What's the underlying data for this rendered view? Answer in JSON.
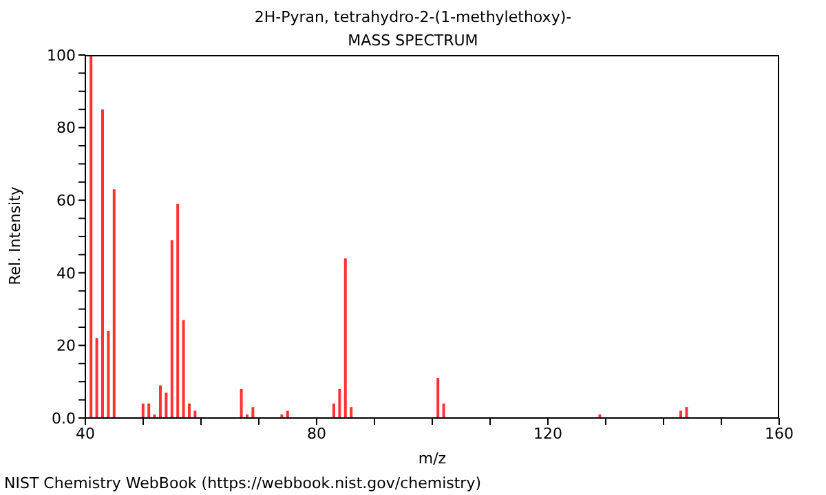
{
  "chart_data": {
    "type": "bar",
    "title": "2H-Pyran, tetrahydro-2-(1-methylethoxy)-",
    "subtitle": "MASS SPECTRUM",
    "xlabel": "m/z",
    "ylabel": "Rel. Intensity",
    "annotations": [
      "NIST Chemistry WebBook (https://webbook.nist.gov/chemistry)"
    ],
    "x": [
      41,
      42,
      43,
      44,
      45,
      50,
      51,
      52,
      53,
      54,
      55,
      56,
      57,
      58,
      59,
      67,
      68,
      69,
      74,
      75,
      83,
      84,
      85,
      86,
      101,
      102,
      129,
      143,
      144
    ],
    "values": [
      100,
      22,
      85,
      24,
      63,
      4,
      4,
      1,
      9,
      7,
      49,
      59,
      27,
      4,
      2,
      8,
      1,
      3,
      1,
      2,
      4,
      8,
      44,
      3,
      11,
      4,
      1,
      2,
      3
    ],
    "color": "#ff3333",
    "xlim": [
      40,
      160
    ],
    "xticks": [
      40,
      {
        "value": 50,
        "label": null
      },
      {
        "value": 60,
        "label": null
      },
      {
        "value": 70,
        "label": null
      },
      80,
      {
        "value": 90,
        "label": null
      },
      {
        "value": 100,
        "label": null
      },
      {
        "value": 110,
        "label": null
      },
      120,
      {
        "value": 130,
        "label": null
      },
      {
        "value": 140,
        "label": null
      },
      {
        "value": 150,
        "label": null
      },
      160
    ],
    "ylim": [
      0,
      100
    ],
    "yticks": [
      {
        "value": 0,
        "label": "0.0"
      },
      {
        "value": 5,
        "label": null
      },
      {
        "value": 10,
        "label": null
      },
      {
        "value": 15,
        "label": null
      },
      20,
      {
        "value": 25,
        "label": null
      },
      {
        "value": 30,
        "label": null
      },
      {
        "value": 35,
        "label": null
      },
      40,
      {
        "value": 45,
        "label": null
      },
      {
        "value": 50,
        "label": null
      },
      {
        "value": 55,
        "label": null
      },
      60,
      {
        "value": 65,
        "label": null
      },
      {
        "value": 70,
        "label": null
      },
      {
        "value": 75,
        "label": null
      },
      80,
      {
        "value": 85,
        "label": null
      },
      {
        "value": 90,
        "label": null
      },
      {
        "value": 95,
        "label": null
      },
      100
    ]
  }
}
